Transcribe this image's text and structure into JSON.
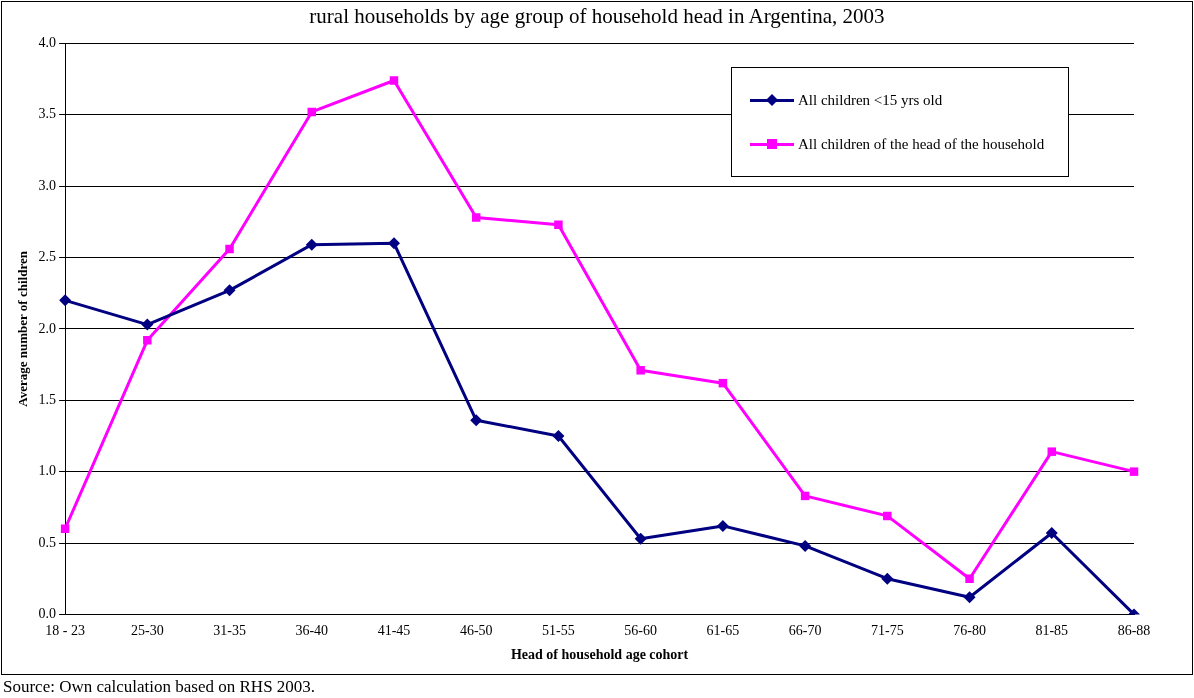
{
  "chart_data": {
    "type": "line",
    "title": "rural households by age group of household head in Argentina, 2003",
    "xlabel": "Head of household age cohort",
    "ylabel": "Average number of children",
    "categories": [
      "18 - 23",
      "25-30",
      "31-35",
      "36-40",
      "41-45",
      "46-50",
      "51-55",
      "56-60",
      "61-65",
      "66-70",
      "71-75",
      "76-80",
      "81-85",
      "86-88"
    ],
    "series": [
      {
        "name": "All children <15 yrs old",
        "color": "#000080",
        "marker": "diamond",
        "values": [
          2.2,
          2.03,
          2.27,
          2.59,
          2.6,
          1.36,
          1.25,
          0.53,
          0.62,
          0.48,
          0.25,
          0.12,
          0.57,
          0
        ]
      },
      {
        "name": "All children of the head of the household",
        "color": "#ff00ff",
        "marker": "square",
        "values": [
          0.6,
          1.92,
          2.56,
          3.52,
          3.74,
          2.78,
          2.73,
          1.71,
          1.62,
          0.83,
          0.69,
          0.25,
          1.14,
          1.0
        ]
      }
    ],
    "ylim": [
      0,
      4
    ],
    "yticks": [
      {
        "value": 0,
        "label": "0.0"
      },
      {
        "value": 0.5,
        "label": "0.5"
      },
      {
        "value": 1,
        "label": "1.0"
      },
      {
        "value": 1.5,
        "label": "1.5"
      },
      {
        "value": 2,
        "label": "2.0"
      },
      {
        "value": 2.5,
        "label": "2.5"
      },
      {
        "value": 3,
        "label": "3.0"
      },
      {
        "value": 3.5,
        "label": "3.5"
      },
      {
        "value": 4,
        "label": "4.0"
      }
    ],
    "grid": "y",
    "legend": "top right",
    "line_style": "solid",
    "annotations": [
      "Source: Own calculation based on RHS 2003."
    ]
  }
}
